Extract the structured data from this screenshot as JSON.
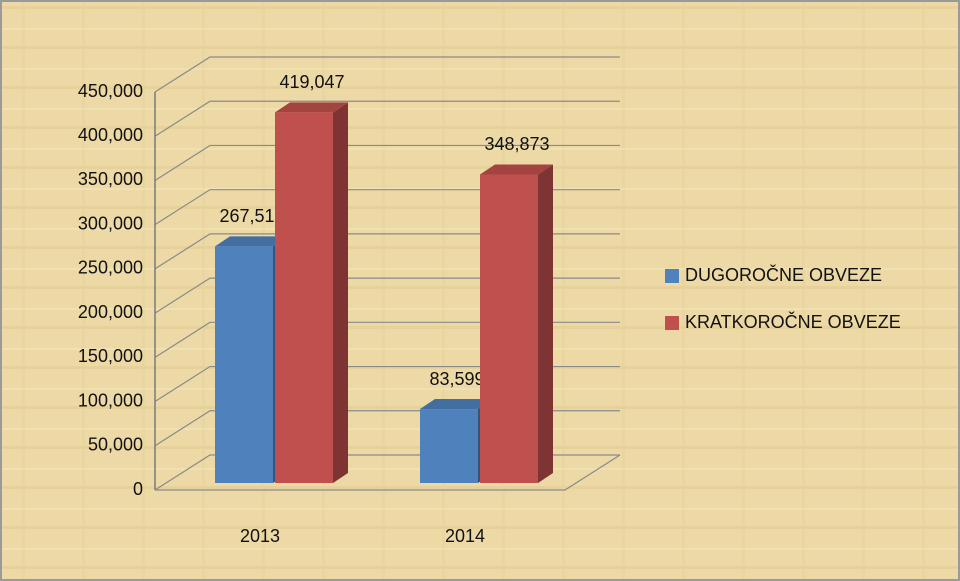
{
  "chart_data": {
    "type": "bar3d",
    "categories": [
      "2013",
      "2014"
    ],
    "series": [
      {
        "name": "DUGOROČNE OBVEZE",
        "color": "#4f81bd",
        "values": [
          267515,
          83599
        ],
        "value_labels": [
          "267,515",
          "83,599"
        ]
      },
      {
        "name": "KRATKOROČNE OBVEZE",
        "color": "#c0504d",
        "values": [
          419047,
          348873
        ],
        "value_labels": [
          "419,047",
          "348,873"
        ]
      }
    ],
    "ylim": [
      0,
      450000
    ],
    "yticks": [
      0,
      {
        "value": 50000,
        "label": "50,000"
      },
      {
        "value": 100000,
        "label": "100,000"
      },
      {
        "value": 150000,
        "label": "150,000"
      },
      {
        "value": 200000,
        "label": "200,000"
      },
      {
        "value": 250000,
        "label": "250,000"
      },
      {
        "value": 300000,
        "label": "300,000"
      },
      {
        "value": 350000,
        "label": "350,000"
      },
      {
        "value": 400000,
        "label": "400,000"
      },
      {
        "value": 450000,
        "label": "450,000"
      }
    ],
    "grid": true,
    "legend": "right"
  }
}
